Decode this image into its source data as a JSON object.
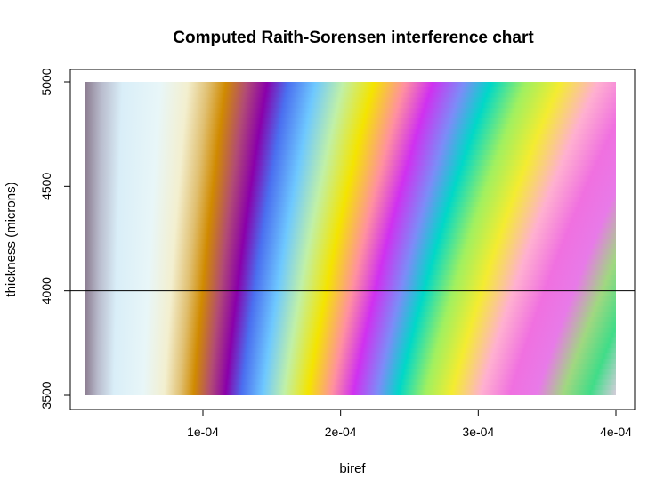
{
  "chart_data": {
    "type": "heatmap",
    "title": "Computed Raith-Sorensen interference chart",
    "xlabel": "biref",
    "ylabel": "thickness (microns)",
    "xlim": [
      1.4e-05,
      0.0004
    ],
    "ylim": [
      3500,
      5000
    ],
    "x_ticks": [
      {
        "value": 0.0001,
        "label": "1e-04"
      },
      {
        "value": 0.0002,
        "label": "2e-04"
      },
      {
        "value": 0.0003,
        "label": "3e-04"
      },
      {
        "value": 0.0004,
        "label": "4e-04"
      }
    ],
    "y_ticks": [
      {
        "value": 3500,
        "label": "3500"
      },
      {
        "value": 4000,
        "label": "4000"
      },
      {
        "value": 4500,
        "label": "4500"
      },
      {
        "value": 5000,
        "label": "5000"
      }
    ],
    "reference_line": {
      "axis": "y",
      "value": 4000,
      "color": "#000000"
    },
    "x": [
      1.4e-05,
      4e-05,
      6e-05,
      8e-05,
      0.0001,
      0.00012,
      0.00014,
      0.00016,
      0.00018,
      0.0002,
      0.00022,
      0.00024,
      0.00026,
      0.00028,
      0.0003,
      0.00032,
      0.00034,
      0.00036,
      0.00038,
      0.0004
    ],
    "y": [
      3500,
      4000,
      4500,
      5000
    ],
    "colors": [
      "#8a7a8e",
      "#d8e6f2",
      "#f4f0d8",
      "#d29a30",
      "#d08a00",
      "#a85098",
      "#8a00aa",
      "#5a70e8",
      "#88c8ff",
      "#b8ecc0",
      "#f2e000",
      "#ff9aa0",
      "#d040f0",
      "#40d8d0",
      "#90f070",
      "#f0f040",
      "#ffb8d8",
      "#ff70e8",
      "#5aaaff",
      "#f090e0"
    ],
    "band_stops": [
      {
        "pos": 0.0,
        "color": "#8a7a8e"
      },
      {
        "pos": 0.025,
        "color": "#b9bccd"
      },
      {
        "pos": 0.055,
        "color": "#d9eef8"
      },
      {
        "pos": 0.11,
        "color": "#e8f6f8"
      },
      {
        "pos": 0.15,
        "color": "#f3efcf"
      },
      {
        "pos": 0.18,
        "color": "#e0bf70"
      },
      {
        "pos": 0.205,
        "color": "#d08a00"
      },
      {
        "pos": 0.235,
        "color": "#b24c74"
      },
      {
        "pos": 0.265,
        "color": "#8a00aa"
      },
      {
        "pos": 0.295,
        "color": "#4b6ff0"
      },
      {
        "pos": 0.335,
        "color": "#6ec8ff"
      },
      {
        "pos": 0.375,
        "color": "#c0f0a8"
      },
      {
        "pos": 0.42,
        "color": "#f4e400"
      },
      {
        "pos": 0.465,
        "color": "#ff90a0"
      },
      {
        "pos": 0.505,
        "color": "#d030f0"
      },
      {
        "pos": 0.55,
        "color": "#7c8cf8"
      },
      {
        "pos": 0.59,
        "color": "#00d8c8"
      },
      {
        "pos": 0.64,
        "color": "#a0f060"
      },
      {
        "pos": 0.69,
        "color": "#f4ec30"
      },
      {
        "pos": 0.745,
        "color": "#ffb0d0"
      },
      {
        "pos": 0.8,
        "color": "#f070e0"
      },
      {
        "pos": 0.85,
        "color": "#e87ae8"
      },
      {
        "pos": 0.9,
        "color": "#a0d880"
      },
      {
        "pos": 0.95,
        "color": "#40dc88"
      },
      {
        "pos": 1.0,
        "color": "#d8ccdc"
      }
    ]
  }
}
